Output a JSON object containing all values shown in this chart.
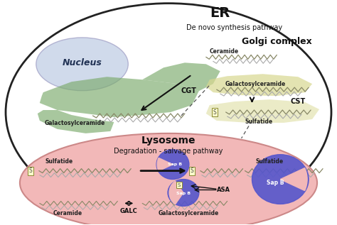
{
  "figure_bg": "#ffffff",
  "cell_color": "#ffffff",
  "cell_edge": "#222222",
  "nucleus_color": "#c8d4e8",
  "nucleus_edge": "#aaaacc",
  "er_color": "#7aaa6a",
  "golgi_color": "#d8d890",
  "lysosome_color": "#f2b8b8",
  "lysosome_edge": "#cc8888",
  "sapb_color": "#5555cc",
  "chain_color": "#888866",
  "chain_color2": "#aaaaaa",
  "arrow_color": "#111111",
  "dashed_color": "#555555",
  "title_er": "ER",
  "title_nucleus": "Nucleus",
  "title_golgi": "Golgi complex",
  "title_lysosome": "Lysosome",
  "title_denovo": "De novo synthesis pathway",
  "title_degradation": "Degradation - salvage pathway",
  "lbl_ceramide_er": "Ceramide",
  "lbl_cgt": "CGT",
  "lbl_galcer_er": "Galactosylceramide",
  "lbl_galcer_golgi": "Galactosylceramide",
  "lbl_cst": "CST",
  "lbl_sulfatide_golgi": "Sulfatide",
  "lbl_sulfatide_lyso1": "Sulfatide",
  "lbl_sulfatide_lyso2": "Sulfatide",
  "lbl_sap_b": "Sap B",
  "lbl_asa": "ASA",
  "lbl_ceramide_lyso": "Ceramide",
  "lbl_galc": "GALC",
  "lbl_galcer_lyso": "Galactosylceramide",
  "lbl_s": "S"
}
